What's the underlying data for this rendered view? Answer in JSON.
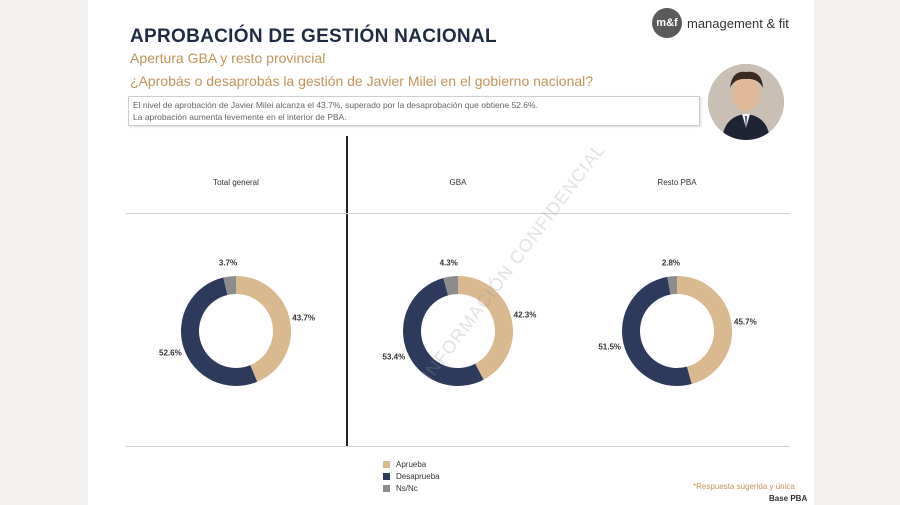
{
  "header": {
    "title": "APROBACIÓN DE GESTIÓN NACIONAL",
    "subtitle": "Apertura GBA y resto provincial",
    "question": "¿Aprobás o desaprobás la gestión de Javier Milei en el gobierno nacional?",
    "summary_line1": "El nivel de aprobación de Javier Milei alcanza el 43.7%, superado por la desaprobación que obtiene 52.6%.",
    "summary_line2": "La aprobación aumenta levemente en el interior de PBA."
  },
  "logo": {
    "mark": "m&f",
    "text": "management & fit"
  },
  "watermark": "INFORMACIÓN CONFIDENCIAL",
  "footer": {
    "note": "*Respuesta sugerida y única",
    "base": "Base PBA"
  },
  "colors": {
    "aprueba": "#d9b98f",
    "desaprueba": "#2e3a5c",
    "nsnc": "#8c8c8c"
  },
  "chart_data": [
    {
      "type": "pie",
      "title": "Total general",
      "categories": [
        "Aprueba",
        "Desaprueba",
        "Ns/Nc"
      ],
      "values": [
        43.7,
        52.6,
        3.7
      ],
      "labels": [
        "43.7%",
        "52.6%",
        "3.7%"
      ]
    },
    {
      "type": "pie",
      "title": "GBA",
      "categories": [
        "Aprueba",
        "Desaprueba",
        "Ns/Nc"
      ],
      "values": [
        42.3,
        53.4,
        4.3
      ],
      "labels": [
        "42.3%",
        "53.4%",
        "4.3%"
      ]
    },
    {
      "type": "pie",
      "title": "Resto PBA",
      "categories": [
        "Aprueba",
        "Desaprueba",
        "Ns/Nc"
      ],
      "values": [
        45.7,
        51.5,
        2.8
      ],
      "labels": [
        "45.7%",
        "51.5%",
        "2.8%"
      ]
    }
  ],
  "legend": [
    "Aprueba",
    "Desaprueba",
    "Ns/Nc"
  ]
}
